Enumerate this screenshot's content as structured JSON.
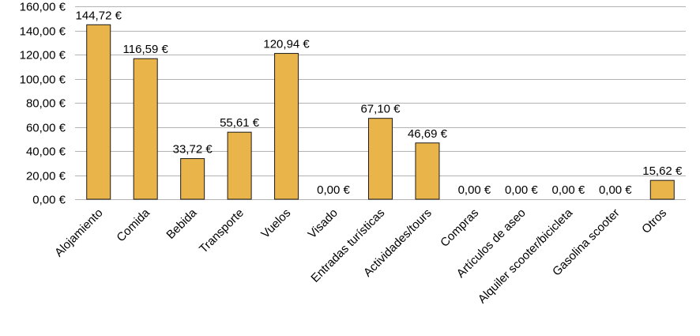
{
  "chart_data": {
    "type": "bar",
    "categories": [
      "Alojamiento",
      "Comida",
      "Bebida",
      "Transporte",
      "Vuelos",
      "Visado",
      "Entradas turísticas",
      "Actividades/tours",
      "Compras",
      "Artículos de aseo",
      "Alquiler scooter/bicicleta",
      "Gasolina scooter",
      "Otros"
    ],
    "values": [
      144.72,
      116.59,
      33.72,
      55.61,
      120.94,
      0,
      67.1,
      46.69,
      0,
      0,
      0,
      0,
      15.62
    ],
    "data_labels": [
      "144,72 €",
      "116,59 €",
      "33,72 €",
      "55,61 €",
      "120,94 €",
      "0,00 €",
      "67,10 €",
      "46,69 €",
      "0,00 €",
      "0,00 €",
      "0,00 €",
      "0,00 €",
      "15,62 €"
    ],
    "y_ticks": [
      0,
      20,
      40,
      60,
      80,
      100,
      120,
      140,
      160
    ],
    "y_tick_labels": [
      "0,00 €",
      "20,00 €",
      "40,00 €",
      "60,00 €",
      "80,00 €",
      "100,00 €",
      "120,00 €",
      "140,00 €",
      "160,00 €"
    ],
    "ylim": [
      0,
      160
    ],
    "grid": true,
    "legend": "none",
    "colors": {
      "bar": "#e9b54b",
      "bar_stroke": "#1a1a1a",
      "grid": "#b3b3b3"
    }
  }
}
